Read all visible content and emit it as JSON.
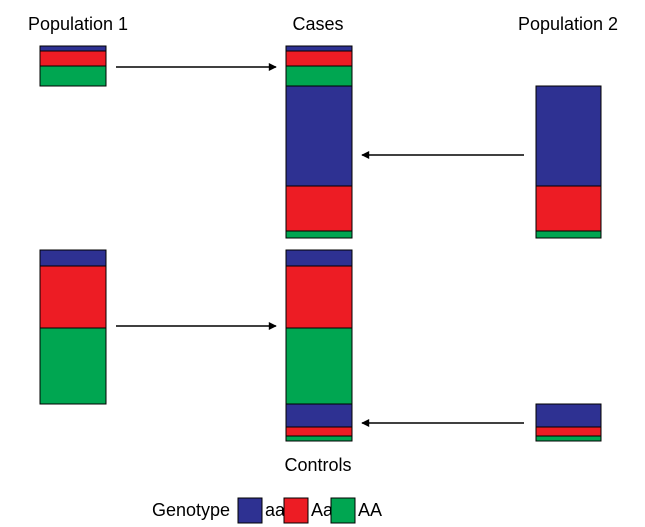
{
  "labels": {
    "population_1": "Population 1",
    "cases": "Cases",
    "population_2": "Population 2",
    "controls": "Controls"
  },
  "legend": {
    "title": "Genotype",
    "items": [
      "aa",
      "Aa",
      "AA"
    ]
  }
}
